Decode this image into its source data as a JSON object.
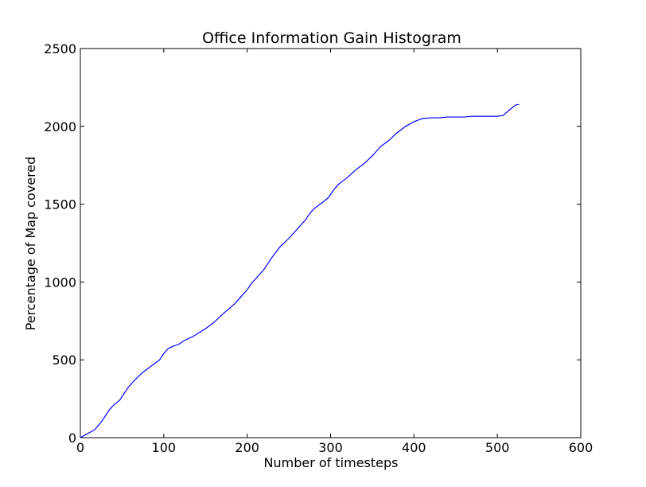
{
  "chart_data": {
    "type": "line",
    "title": "Office Information Gain Histogram",
    "xlabel": "Number of timesteps",
    "ylabel": "Percentage of Map covered",
    "xlim": [
      0,
      600
    ],
    "ylim": [
      0,
      2500
    ],
    "xticks": [
      0,
      100,
      200,
      300,
      400,
      500,
      600
    ],
    "yticks": [
      0,
      500,
      1000,
      1500,
      2000,
      2500
    ],
    "xtick_labels": [
      "0",
      "100",
      "200",
      "300",
      "400",
      "500",
      "600"
    ],
    "ytick_labels": [
      "0",
      "500",
      "1000",
      "1500",
      "2000",
      "2500"
    ],
    "grid": false,
    "line_color": "#0000ff",
    "series": [
      {
        "x": [
          0,
          5,
          10,
          17,
          25,
          30,
          35,
          40,
          47,
          52,
          57,
          65,
          75,
          85,
          95,
          100,
          105,
          110,
          118,
          125,
          135,
          150,
          160,
          170,
          185,
          190,
          200,
          205,
          210,
          220,
          225,
          230,
          240,
          250,
          260,
          270,
          275,
          280,
          290,
          297,
          305,
          310,
          320,
          330,
          340,
          350,
          355,
          360,
          370,
          380,
          385,
          390,
          400,
          405,
          410,
          420,
          430,
          440,
          450,
          460,
          470,
          480,
          490,
          500,
          507,
          510,
          520,
          523,
          526
        ],
        "y": [
          0,
          15,
          30,
          50,
          100,
          140,
          180,
          210,
          240,
          280,
          320,
          370,
          420,
          460,
          500,
          540,
          570,
          585,
          600,
          625,
          650,
          700,
          740,
          790,
          860,
          890,
          950,
          990,
          1020,
          1080,
          1120,
          1160,
          1230,
          1280,
          1340,
          1400,
          1440,
          1470,
          1510,
          1540,
          1600,
          1630,
          1670,
          1720,
          1760,
          1810,
          1840,
          1870,
          1910,
          1960,
          1980,
          2000,
          2030,
          2040,
          2050,
          2055,
          2055,
          2060,
          2060,
          2060,
          2065,
          2065,
          2065,
          2065,
          2070,
          2085,
          2130,
          2140,
          2140
        ]
      }
    ]
  }
}
